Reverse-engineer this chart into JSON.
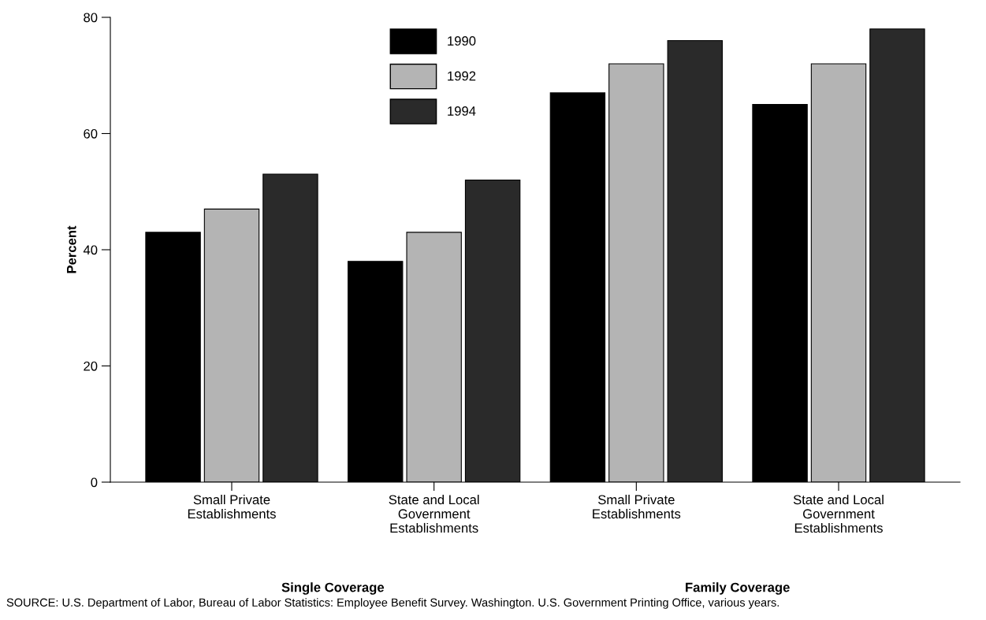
{
  "chart_data": {
    "type": "bar",
    "ylabel": "Percent",
    "categories": [
      "Small Private\nEstablishments",
      "State and Local\nGovernment\nEstablishments",
      "Small Private\nEstablishments",
      "State and Local\nGovernment\nEstablishments"
    ],
    "series": [
      {
        "name": "1990",
        "color": "#000000",
        "values": [
          43,
          38,
          67,
          65
        ]
      },
      {
        "name": "1992",
        "color": "#b4b4b4",
        "values": [
          47,
          43,
          72,
          72
        ]
      },
      {
        "name": "1994",
        "color": "#2a2a2a",
        "values": [
          53,
          52,
          76,
          78
        ]
      }
    ],
    "ylim": [
      0,
      80
    ],
    "yticks": [
      0,
      20,
      40,
      60,
      80
    ],
    "grid": false,
    "legend": "top",
    "annotations": [
      "Single Coverage",
      "Family Coverage",
      "SOURCE: U.S. Department of Labor, Bureau of Labor Statistics: Employee Benefit Survey. Washington. U.S. Government Printing Office, various years."
    ]
  }
}
